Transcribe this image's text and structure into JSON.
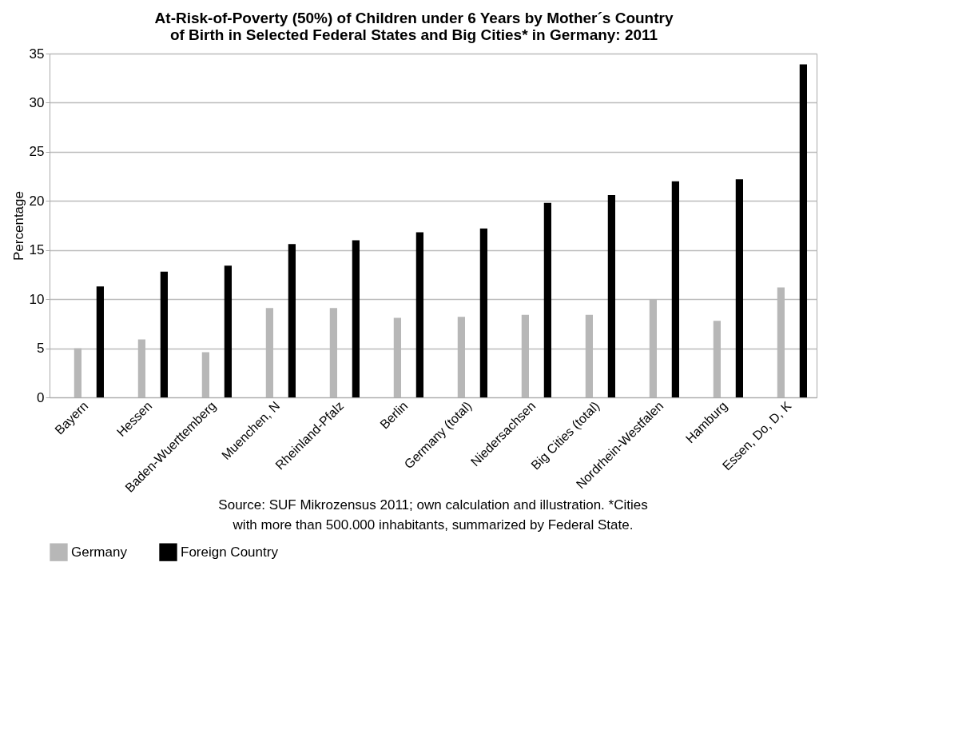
{
  "chart_data": {
    "type": "bar",
    "title": "At-Risk-of-Poverty (50%) of Children under 6 Years by Mother´s Country of Birth in Selected Federal States and Big Cities* in Germany: 2011",
    "ylabel": "Percentage",
    "categories": [
      "Bayern",
      "Hessen",
      "Baden-Wuerttemberg",
      "Muenchen, N",
      "Rheinland-Pfalz",
      "Berlin",
      "Germany (total)",
      "Niedersachsen",
      "Big Cities (total)",
      "Nordrhein-Westfalen",
      "Hamburg",
      "Essen, Do, D, K"
    ],
    "series": [
      {
        "name": "Germany",
        "color": "#b7b7b7",
        "values": [
          5.0,
          5.9,
          4.6,
          9.1,
          9.1,
          8.1,
          8.2,
          8.4,
          8.4,
          10.0,
          7.8,
          11.2
        ]
      },
      {
        "name": "Foreign Country",
        "color": "#000000",
        "values": [
          11.3,
          12.8,
          13.4,
          15.6,
          16.0,
          16.8,
          17.2,
          19.8,
          20.6,
          22.0,
          22.2,
          33.9
        ]
      }
    ],
    "ylim": [
      0,
      35
    ],
    "yticks": [
      0,
      5,
      10,
      15,
      20,
      25,
      30,
      35
    ],
    "grid": "y",
    "legend": "bottom",
    "annotations": [
      "Source: SUF Mikrozensus 2011; own calculation and illustration. *Cities with more than 500.000 inhabitants, summarized by Federal State."
    ]
  }
}
